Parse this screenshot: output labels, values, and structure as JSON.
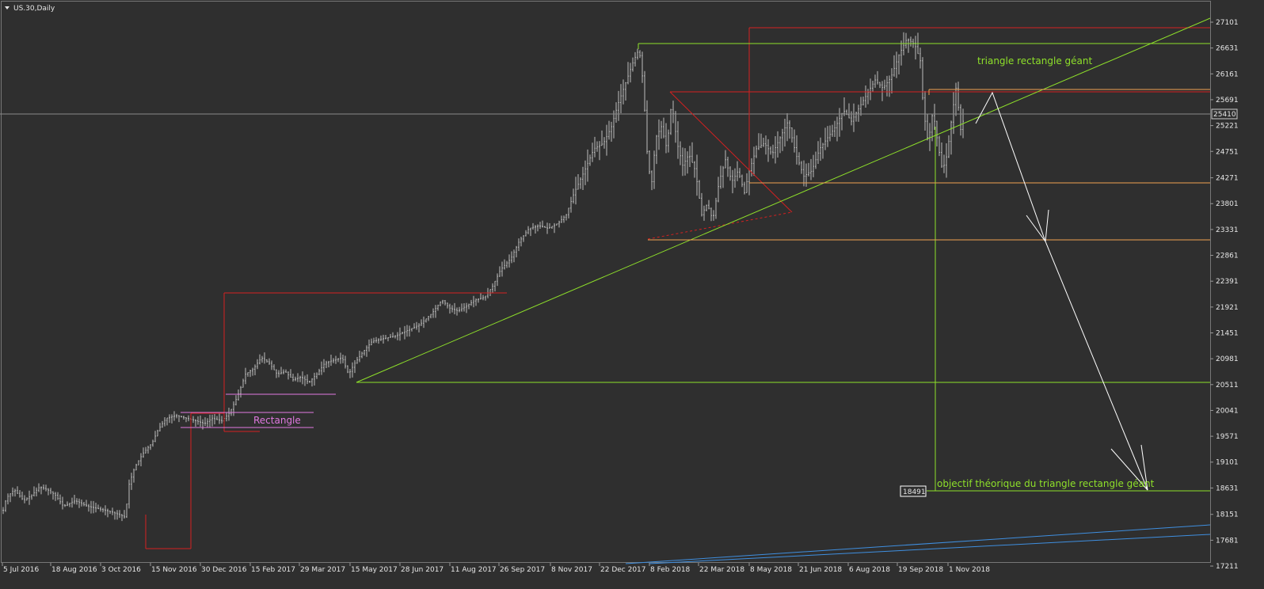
{
  "window": {
    "title": "US.30,Daily"
  },
  "chart_data": {
    "type": "candlestick",
    "symbol": "US.30",
    "timeframe": "Daily",
    "ylim": [
      17211,
      27300
    ],
    "y_ticks": [
      27101,
      26631,
      26161,
      25691,
      25221,
      24751,
      24271,
      23801,
      23331,
      22861,
      22391,
      21921,
      21451,
      20981,
      20511,
      20041,
      19571,
      19101,
      18631,
      18151,
      17681,
      17211
    ],
    "x_ticks": [
      "5 Jul 2016",
      "18 Aug 2016",
      "3 Oct 2016",
      "15 Nov 2016",
      "30 Dec 2016",
      "15 Feb 2017",
      "29 Mar 2017",
      "15 May 2017",
      "28 Jun 2017",
      "11 Aug 2017",
      "26 Sep 2017",
      "8 Nov 2017",
      "22 Dec 2017",
      "8 Feb 2018",
      "22 Mar 2018",
      "8 May 2018",
      "21 Jun 2018",
      "6 Aug 2018",
      "19 Sep 2018",
      "1 Nov 2018"
    ],
    "current_price": "25410",
    "target_price": "18491",
    "price_path": [
      [
        0,
        18000
      ],
      [
        8,
        18450
      ],
      [
        18,
        18600
      ],
      [
        30,
        18400
      ],
      [
        40,
        18500
      ],
      [
        50,
        18650
      ],
      [
        60,
        18600
      ],
      [
        70,
        18500
      ],
      [
        80,
        18300
      ],
      [
        95,
        18400
      ],
      [
        110,
        18300
      ],
      [
        125,
        18250
      ],
      [
        140,
        18200
      ],
      [
        150,
        18150
      ],
      [
        158,
        18100
      ],
      [
        163,
        18700
      ],
      [
        170,
        19000
      ],
      [
        180,
        19250
      ],
      [
        192,
        19450
      ],
      [
        200,
        19700
      ],
      [
        210,
        19900
      ],
      [
        222,
        19950
      ],
      [
        235,
        19900
      ],
      [
        248,
        19850
      ],
      [
        258,
        19800
      ],
      [
        268,
        19900
      ],
      [
        280,
        19850
      ],
      [
        290,
        20000
      ],
      [
        300,
        20300
      ],
      [
        310,
        20700
      ],
      [
        320,
        20800
      ],
      [
        330,
        21000
      ],
      [
        340,
        20900
      ],
      [
        350,
        20700
      ],
      [
        360,
        20750
      ],
      [
        370,
        20600
      ],
      [
        380,
        20650
      ],
      [
        390,
        20550
      ],
      [
        400,
        20700
      ],
      [
        410,
        20900
      ],
      [
        420,
        20950
      ],
      [
        432,
        21000
      ],
      [
        440,
        20700
      ],
      [
        448,
        20900
      ],
      [
        458,
        21100
      ],
      [
        470,
        21300
      ],
      [
        485,
        21350
      ],
      [
        500,
        21400
      ],
      [
        515,
        21500
      ],
      [
        530,
        21600
      ],
      [
        545,
        21800
      ],
      [
        558,
        22050
      ],
      [
        568,
        21900
      ],
      [
        578,
        21850
      ],
      [
        590,
        21950
      ],
      [
        600,
        22050
      ],
      [
        612,
        22100
      ],
      [
        622,
        22300
      ],
      [
        632,
        22600
      ],
      [
        645,
        22800
      ],
      [
        655,
        23100
      ],
      [
        668,
        23350
      ],
      [
        680,
        23400
      ],
      [
        692,
        23350
      ],
      [
        705,
        23450
      ],
      [
        715,
        23600
      ],
      [
        725,
        24000
      ],
      [
        738,
        24400
      ],
      [
        750,
        24800
      ],
      [
        762,
        24900
      ],
      [
        772,
        25200
      ],
      [
        780,
        25600
      ],
      [
        790,
        26000
      ],
      [
        800,
        26400
      ],
      [
        807,
        26616
      ],
      [
        812,
        26000
      ],
      [
        818,
        24500
      ],
      [
        823,
        24200
      ],
      [
        828,
        25000
      ],
      [
        835,
        25200
      ],
      [
        842,
        24800
      ],
      [
        848,
        25650
      ],
      [
        855,
        24900
      ],
      [
        862,
        24500
      ],
      [
        870,
        24700
      ],
      [
        878,
        24400
      ],
      [
        886,
        23600
      ],
      [
        893,
        23800
      ],
      [
        900,
        23500
      ],
      [
        908,
        24200
      ],
      [
        916,
        24600
      ],
      [
        924,
        24200
      ],
      [
        932,
        24400
      ],
      [
        940,
        24000
      ],
      [
        946,
        24400
      ],
      [
        955,
        24800
      ],
      [
        965,
        24900
      ],
      [
        975,
        24700
      ],
      [
        985,
        25000
      ],
      [
        995,
        25300
      ],
      [
        1005,
        24700
      ],
      [
        1015,
        24300
      ],
      [
        1025,
        24400
      ],
      [
        1035,
        24800
      ],
      [
        1045,
        25000
      ],
      [
        1055,
        25200
      ],
      [
        1065,
        25500
      ],
      [
        1075,
        25300
      ],
      [
        1085,
        25550
      ],
      [
        1095,
        25800
      ],
      [
        1105,
        26050
      ],
      [
        1115,
        25900
      ],
      [
        1125,
        26100
      ],
      [
        1135,
        26500
      ],
      [
        1145,
        26800
      ],
      [
        1155,
        26700
      ],
      [
        1162,
        26400
      ],
      [
        1166,
        25500
      ],
      [
        1172,
        24900
      ],
      [
        1178,
        25500
      ],
      [
        1184,
        24900
      ],
      [
        1190,
        24400
      ],
      [
        1196,
        24700
      ],
      [
        1202,
        25400
      ],
      [
        1208,
        26000
      ],
      [
        1212,
        25100
      ],
      [
        1218,
        25400
      ]
    ]
  },
  "annotations": {
    "rectangle_label": "Rectangle",
    "triangle_label": "triangle rectangle géant",
    "objective_label": "objectif théorique du triangle rectangle géant"
  },
  "colors": {
    "background": "#2f2f2f",
    "candle": "#bcbcbc",
    "red_lines": "#d42020",
    "green_lines": "#8ee02a",
    "orange_lines": "#f0a050",
    "pink_lines": "#e078e0",
    "blue_lines": "#3f8fe0",
    "arrow": "#ffffff"
  }
}
